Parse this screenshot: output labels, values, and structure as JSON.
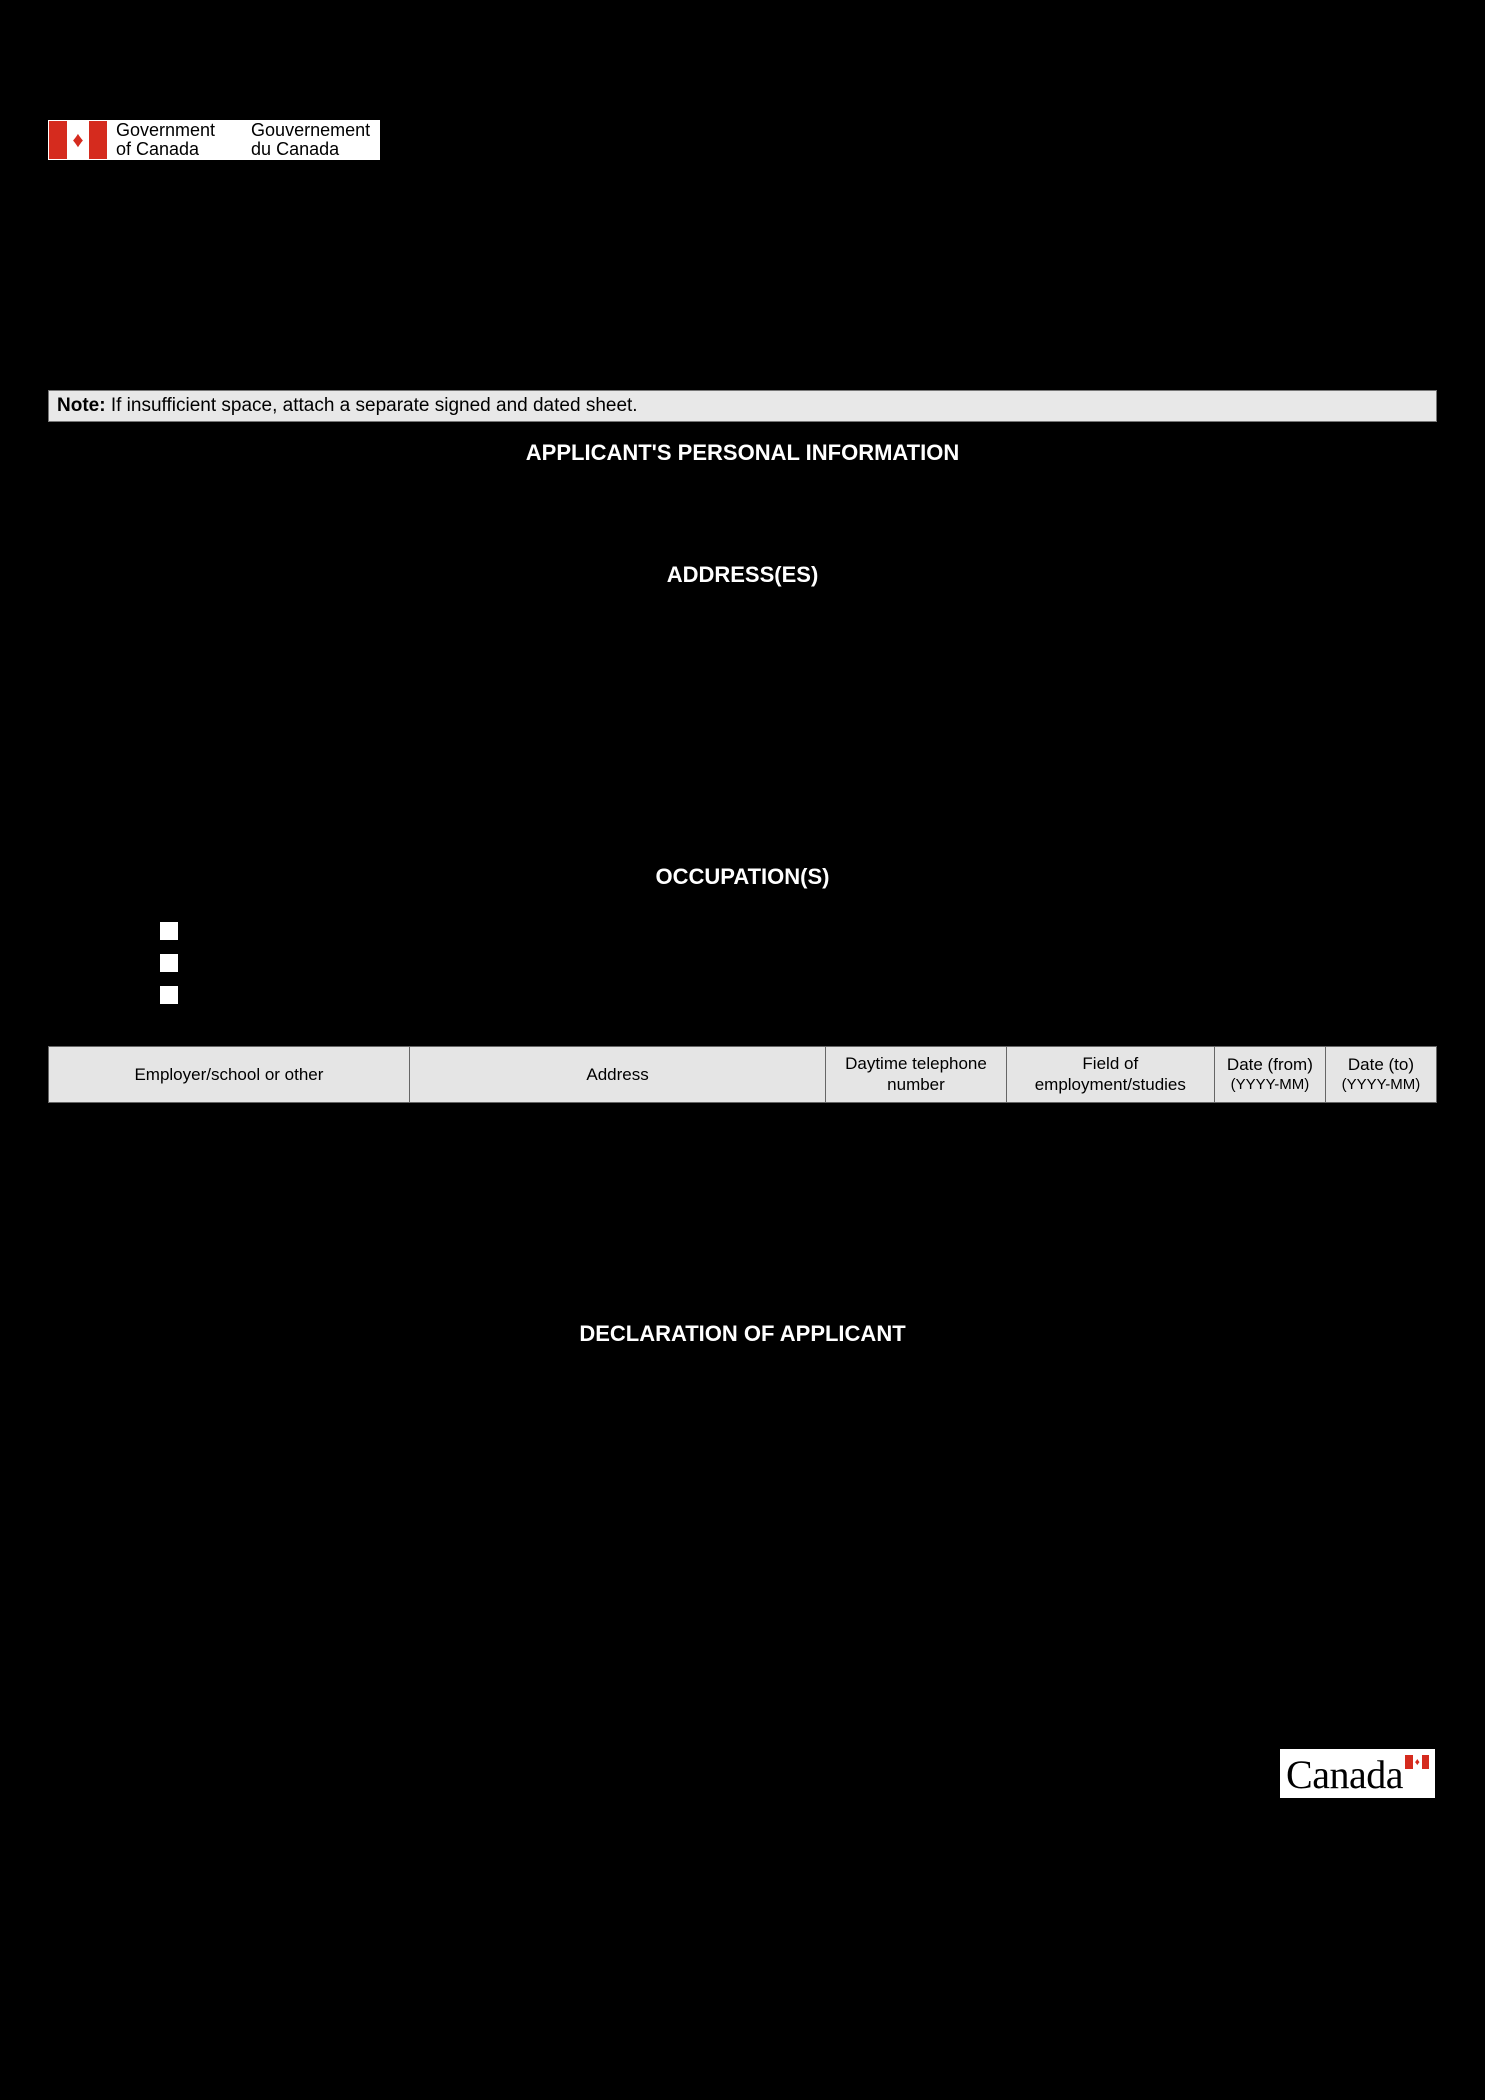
{
  "header": {
    "gov_en_line1": "Government",
    "gov_en_line2": "of Canada",
    "gov_fr_line1": "Gouvernement",
    "gov_fr_line2": "du Canada"
  },
  "note": {
    "label": "Note:",
    "text": " If insufficient space, attach a separate signed and dated sheet."
  },
  "sections": {
    "personal": "APPLICANT'S PERSONAL INFORMATION",
    "addresses": "ADDRESS(ES)",
    "occupations": "OCCUPATION(S)",
    "declaration": "DECLARATION OF APPLICANT"
  },
  "occupation_table": {
    "columns": [
      {
        "label": "Employer/school or other",
        "width": "26%"
      },
      {
        "label": "Address",
        "width": "30%"
      },
      {
        "label": "Daytime telephone number",
        "width": "13%"
      },
      {
        "label": "Field of employment/studies",
        "width": "15%"
      },
      {
        "label": "Date (from)",
        "sub": "(YYYY-MM)",
        "width": "8%"
      },
      {
        "label": "Date (to)",
        "sub": "(YYYY-MM)",
        "width": "8%"
      }
    ]
  },
  "wordmark": "Canada",
  "colors": {
    "page_bg": "#000000",
    "note_bg": "#e8e8e8",
    "table_header_bg": "#e5e5e5",
    "flag_red": "#d52b1e",
    "white": "#ffffff",
    "border_gray": "#666666"
  },
  "checkbox_count": 3
}
